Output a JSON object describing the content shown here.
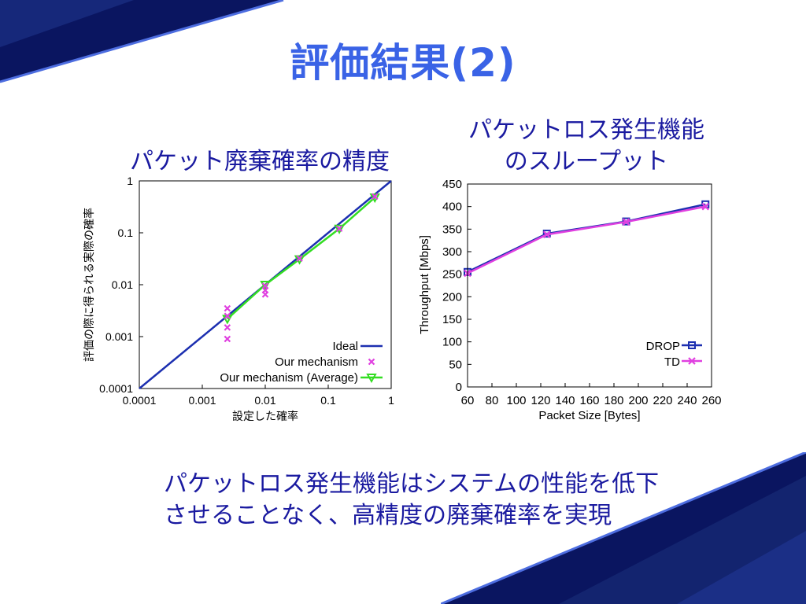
{
  "slide": {
    "title": "評価結果(2)",
    "left_heading": "パケット廃棄確率の精度",
    "right_heading_line1": "パケットロス発生機能",
    "right_heading_line2": "のスループット",
    "conclusion_line1": "パケットロス発生機能はシステムの性能を低下",
    "conclusion_line2": "させることなく、高精度の廃棄確率を実現"
  },
  "colors": {
    "title": "#3a63e6",
    "heading_text": "#1a1aa0",
    "ideal": "#1c2fb0",
    "mechanism_points": "#e040e0",
    "average": "#33dd22",
    "drop": "#1c2fb0",
    "td": "#e040e0",
    "corner_dark": "#0a1560"
  },
  "chart_data": [
    {
      "type": "scatter",
      "xscale": "log",
      "yscale": "log",
      "xlabel": "設定した確率",
      "ylabel": "評価の際に得られる実際の確率",
      "xlim": [
        0.0001,
        1
      ],
      "ylim": [
        0.0001,
        1
      ],
      "x_ticks": [
        "0.0001",
        "0.001",
        "0.01",
        "0.1",
        "1"
      ],
      "y_ticks": [
        "0.0001",
        "0.001",
        "0.01",
        "0.1",
        "1"
      ],
      "legend_position": "bottom-right",
      "series": [
        {
          "name": "Ideal",
          "style": "line",
          "points": [
            [
              0.0001,
              0.0001
            ],
            [
              1,
              1
            ]
          ]
        },
        {
          "name": "Our mechanism",
          "style": "points",
          "points": [
            [
              0.0025,
              0.0009
            ],
            [
              0.0025,
              0.0015
            ],
            [
              0.0025,
              0.0025
            ],
            [
              0.0025,
              0.0035
            ],
            [
              0.01,
              0.0065
            ],
            [
              0.01,
              0.0078
            ],
            [
              0.01,
              0.0095
            ],
            [
              0.035,
              0.032
            ],
            [
              0.15,
              0.12
            ],
            [
              0.55,
              0.5
            ]
          ]
        },
        {
          "name": "Our mechanism (Average)",
          "style": "line-points",
          "points": [
            [
              0.0025,
              0.0022
            ],
            [
              0.01,
              0.01
            ],
            [
              0.035,
              0.031
            ],
            [
              0.15,
              0.12
            ],
            [
              0.55,
              0.48
            ]
          ]
        }
      ]
    },
    {
      "type": "line",
      "xlabel": "Packet Size [Bytes]",
      "ylabel": "Throughput [Mbps]",
      "xlim": [
        60,
        260
      ],
      "ylim": [
        0,
        450
      ],
      "x_ticks": [
        "60",
        "80",
        "100",
        "120",
        "140",
        "160",
        "180",
        "200",
        "220",
        "240",
        "260"
      ],
      "y_ticks": [
        "0",
        "50",
        "100",
        "150",
        "200",
        "250",
        "300",
        "350",
        "400",
        "450"
      ],
      "legend_position": "bottom-right",
      "series": [
        {
          "name": "DROP",
          "x": [
            60,
            125,
            190,
            255
          ],
          "values": [
            255,
            340,
            367,
            405
          ]
        },
        {
          "name": "TD",
          "x": [
            60,
            125,
            190,
            255
          ],
          "values": [
            252,
            338,
            366,
            400
          ]
        }
      ]
    }
  ]
}
